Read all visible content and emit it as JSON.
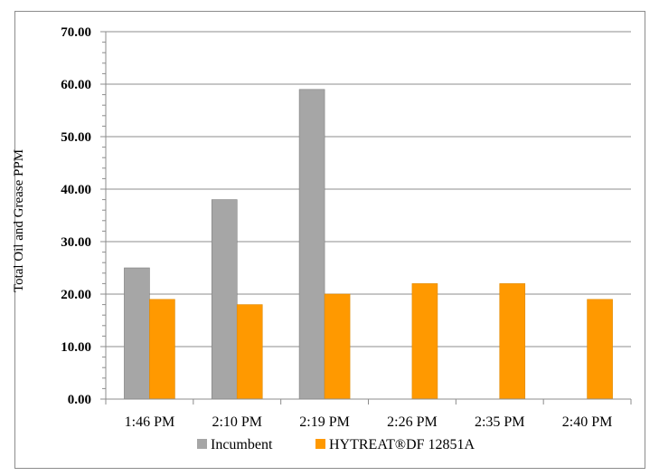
{
  "chart_data": {
    "type": "bar",
    "ylabel": "Total Oil and Grease PPM",
    "xlabel": "",
    "ylim": [
      0,
      70
    ],
    "ytick_step": 10,
    "ytick_decimals": 2,
    "minor_ticks_per_major": 5,
    "grid": true,
    "legend_position": "bottom",
    "categories": [
      "1:46 PM",
      "2:10 PM",
      "2:19 PM",
      "2:26 PM",
      "2:35 PM",
      "2:40 PM"
    ],
    "series": [
      {
        "name": "Incumbent",
        "color": "#a6a6a6",
        "values": [
          25,
          38,
          59,
          null,
          null,
          null
        ]
      },
      {
        "name": "HYTREAT®DF 12851A",
        "color": "#ff9900",
        "values": [
          19,
          18,
          20,
          22,
          22,
          19
        ]
      }
    ]
  }
}
